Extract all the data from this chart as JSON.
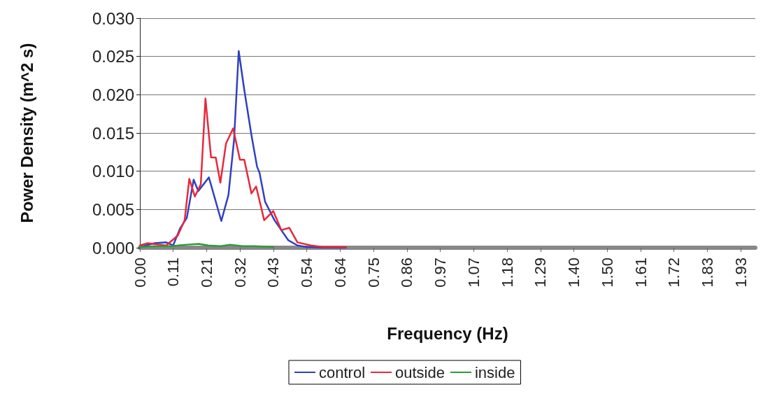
{
  "chart_data": {
    "type": "line",
    "xlabel": "Frequency (Hz)",
    "ylabel": "Power Density (m^2 s)",
    "xlim": [
      0,
      1.98
    ],
    "ylim": [
      0,
      0.03
    ],
    "xticks": [
      {
        "value": 0,
        "label": "0.00"
      },
      {
        "value": 0.1074,
        "label": "0.11"
      },
      {
        "value": 0.2148,
        "label": "0.21"
      },
      {
        "value": 0.3222,
        "label": "0.32"
      },
      {
        "value": 0.4296,
        "label": "0.43"
      },
      {
        "value": 0.537,
        "label": "0.54"
      },
      {
        "value": 0.6444,
        "label": "0.64"
      },
      {
        "value": 0.7518,
        "label": "0.75"
      },
      {
        "value": 0.8592,
        "label": "0.86"
      },
      {
        "value": 0.9666,
        "label": "0.97"
      },
      {
        "value": 1.074,
        "label": "1.07"
      },
      {
        "value": 1.1814,
        "label": "1.18"
      },
      {
        "value": 1.2888,
        "label": "1.29"
      },
      {
        "value": 1.3962,
        "label": "1.40"
      },
      {
        "value": 1.5036,
        "label": "1.50"
      },
      {
        "value": 1.611,
        "label": "1.61"
      },
      {
        "value": 1.7184,
        "label": "1.72"
      },
      {
        "value": 1.8258,
        "label": "1.83"
      },
      {
        "value": 1.9332,
        "label": "1.93"
      }
    ],
    "yticks": [
      {
        "value": 0,
        "label": "0.000"
      },
      {
        "value": 0.005,
        "label": "0.005"
      },
      {
        "value": 0.01,
        "label": "0.010"
      },
      {
        "value": 0.015,
        "label": "0.015"
      },
      {
        "value": 0.02,
        "label": "0.020"
      },
      {
        "value": 0.025,
        "label": "0.025"
      },
      {
        "value": 0.03,
        "label": "0.030"
      }
    ],
    "grid": "y",
    "legend": "bottom",
    "marker": "none",
    "line_style": "solid",
    "series": [
      {
        "name": "control",
        "color": "#3040c0",
        "x": [
          0,
          0.047,
          0.085,
          0.107,
          0.129,
          0.151,
          0.173,
          0.188,
          0.222,
          0.262,
          0.285,
          0.303,
          0.318,
          0.336,
          0.359,
          0.377,
          0.385,
          0.403,
          0.433,
          0.477,
          0.507,
          0.537,
          0.6,
          0.663
        ],
        "values": [
          0.0001,
          0.0006,
          0.0007,
          0.0003,
          0.0025,
          0.0039,
          0.0089,
          0.0074,
          0.0092,
          0.0035,
          0.0069,
          0.0141,
          0.0257,
          0.0206,
          0.0147,
          0.0106,
          0.0098,
          0.006,
          0.0036,
          0.001,
          0.0003,
          0.0001,
          0,
          0
        ]
      },
      {
        "name": "outside",
        "color": "#e8283c",
        "x": [
          0,
          0.025,
          0.085,
          0.122,
          0.144,
          0.159,
          0.177,
          0.196,
          0.211,
          0.229,
          0.244,
          0.259,
          0.277,
          0.3,
          0.322,
          0.336,
          0.359,
          0.374,
          0.4,
          0.429,
          0.455,
          0.481,
          0.507,
          0.551,
          0.589,
          0.663
        ],
        "values": [
          0.0003,
          0.0006,
          0.0003,
          0.0016,
          0.0036,
          0.009,
          0.0067,
          0.0083,
          0.0195,
          0.0118,
          0.0118,
          0.0085,
          0.0136,
          0.0156,
          0.0115,
          0.0115,
          0.0071,
          0.008,
          0.0036,
          0.0048,
          0.0023,
          0.0026,
          0.0007,
          0.0003,
          0.0001,
          0.0001
        ]
      },
      {
        "name": "inside",
        "color": "#2e9a3a",
        "x": [
          0,
          0.05,
          0.1,
          0.15,
          0.19,
          0.22,
          0.26,
          0.29,
          0.33,
          0.37,
          0.43
        ],
        "values": [
          0.0001,
          0.0002,
          0.0002,
          0.0004,
          0.0005,
          0.0003,
          0.0002,
          0.0004,
          0.0002,
          0.0002,
          0.0001
        ]
      }
    ]
  }
}
